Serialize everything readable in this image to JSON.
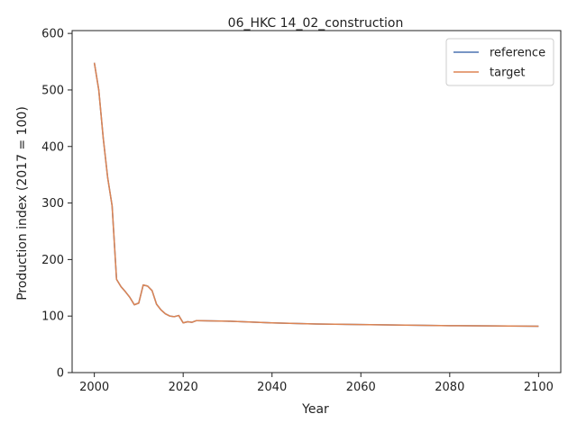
{
  "chart_data": {
    "type": "line",
    "title": "06_HKC 14_02_construction",
    "xlabel": "Year",
    "ylabel": "Production index (2017 = 100)",
    "xlim": [
      1995,
      2105
    ],
    "ylim": [
      0,
      605
    ],
    "xticks": [
      2000,
      2020,
      2040,
      2060,
      2080,
      2100
    ],
    "yticks": [
      0,
      100,
      200,
      300,
      400,
      500,
      600
    ],
    "grid": false,
    "legend_position": "top-right",
    "series": [
      {
        "name": "reference",
        "color": "#4c72b0",
        "x": [
          2000,
          2001,
          2002,
          2003,
          2004,
          2005,
          2006,
          2007,
          2008,
          2009,
          2010,
          2011,
          2012,
          2013,
          2014,
          2015,
          2016,
          2017,
          2018,
          2019,
          2020,
          2021,
          2022,
          2023,
          2030,
          2040,
          2050,
          2060,
          2070,
          2080,
          2090,
          2100
        ],
        "y": [
          548,
          500,
          415,
          345,
          295,
          165,
          152,
          143,
          133,
          120,
          123,
          155,
          153,
          145,
          121,
          111,
          104,
          100,
          99,
          101,
          88,
          90,
          89,
          92,
          91,
          88,
          86,
          85,
          84,
          83,
          82.5,
          82
        ]
      },
      {
        "name": "target",
        "color": "#dd8452",
        "x": [
          2000,
          2001,
          2002,
          2003,
          2004,
          2005,
          2006,
          2007,
          2008,
          2009,
          2010,
          2011,
          2012,
          2013,
          2014,
          2015,
          2016,
          2017,
          2018,
          2019,
          2020,
          2021,
          2022,
          2023,
          2030,
          2040,
          2050,
          2060,
          2070,
          2080,
          2090,
          2100
        ],
        "y": [
          548,
          500,
          415,
          345,
          295,
          165,
          152,
          143,
          133,
          120,
          123,
          155,
          153,
          145,
          121,
          111,
          104,
          100,
          99,
          101,
          88,
          90,
          89,
          92,
          91,
          88,
          86,
          85,
          84,
          83,
          82.5,
          82
        ]
      }
    ]
  }
}
